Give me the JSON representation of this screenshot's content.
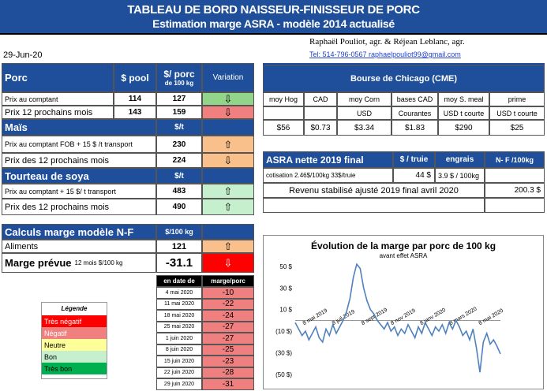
{
  "title": {
    "line1": "TABLEAU DE BORD NAISSEUR-FINISSEUR DE PORC",
    "line2": "Estimation marge ASRA - modèle 2014 actualisé"
  },
  "authors": "Raphaël Pouliot, agr.   &   Réjean Leblanc, agr.",
  "contact": "Tel:   514-796-0567   raphaelpouliot99@gmail.com",
  "date": "29-Jun-20",
  "porc": {
    "header": "Porc",
    "col_pool": "$ pool",
    "col_porc_l1": "$/ porc",
    "col_porc_l2": "de 100 kg",
    "col_var": "Variation",
    "rows": [
      {
        "label": "Prix au comptant",
        "pool": "114",
        "porc": "127",
        "arrow": "⇩"
      },
      {
        "label": "Prix 12 prochains mois",
        "pool": "143",
        "porc": "159",
        "arrow": "⇩"
      }
    ]
  },
  "mais": {
    "header": "Maïs",
    "unit": "$/t",
    "rows": [
      {
        "label": "Prix au comptant  FOB + 15 $ /t transport",
        "value": "230",
        "arrow": "⇧"
      },
      {
        "label": "Prix des 12 prochains mois",
        "value": "224",
        "arrow": "⇩"
      }
    ]
  },
  "soya": {
    "header": "Tourteau de soya",
    "unit": "$/t",
    "rows": [
      {
        "label": "Prix au comptant  + 15 $/ t  transport",
        "value": "483",
        "arrow": "⇧"
      },
      {
        "label": "Prix des 12 prochains mois",
        "value": "490",
        "arrow": "⇧"
      }
    ]
  },
  "calculs": {
    "header": "Calculs marge  modèle N-F",
    "unit": "$/100 kg",
    "aliments_label": "Aliments",
    "aliments_value": "121",
    "aliments_arrow": "⇧",
    "marge_label": "Marge prévue",
    "marge_sub": "12 mois  $/100 kg",
    "marge_value": "-31.1",
    "marge_arrow": "⇩"
  },
  "history": {
    "col_date": "en date de",
    "col_marge": "marge/porc",
    "rows": [
      {
        "date": "4 mai 2020",
        "value": "-10"
      },
      {
        "date": "11 mai 2020",
        "value": "-22"
      },
      {
        "date": "18 mai 2020",
        "value": "-24"
      },
      {
        "date": "25 mai 2020",
        "value": "-27"
      },
      {
        "date": "1 juin 2020",
        "value": "-27"
      },
      {
        "date": "8 juin 2020",
        "value": "-25"
      },
      {
        "date": "15 juin 2020",
        "value": "-23"
      },
      {
        "date": "22 juin 2020",
        "value": "-28"
      },
      {
        "date": "29 juin 2020",
        "value": "-31"
      }
    ]
  },
  "legend": {
    "title": "Légende",
    "items": [
      {
        "label": "Très négatif",
        "color": "#ff0000",
        "text_color": "#ffffff"
      },
      {
        "label": "Négatif",
        "color": "#f08080",
        "text_color": "#ffffff"
      },
      {
        "label": "Neutre",
        "color": "#ffff99",
        "text_color": "#000000"
      },
      {
        "label": "Bon",
        "color": "#c6efce",
        "text_color": "#000000"
      },
      {
        "label": "Très bon",
        "color": "#00b050",
        "text_color": "#000000"
      }
    ]
  },
  "cme": {
    "header": "Bourse de Chicago (CME)",
    "cols": [
      {
        "name": "moy Hog",
        "unit": "",
        "value": "$56"
      },
      {
        "name": "CAD",
        "unit": "",
        "value": "$0.73"
      },
      {
        "name": "moy Corn",
        "unit": "USD",
        "value": "$3.34"
      },
      {
        "name": "bases CAD",
        "unit": "Courantes",
        "value": "$1.83"
      },
      {
        "name": "moy S. meal",
        "unit": "USD t courte",
        "value": "$290"
      },
      {
        "name": "prime",
        "unit": "USD t courte",
        "value": "$25"
      }
    ]
  },
  "asra": {
    "header": "ASRA nette 2019 final",
    "col_truie": "$ / truie",
    "col_engrais": "engrais",
    "col_nf": "N- F /100kg",
    "cotisation_label": "cotisation 2.46$/100kg  33$/truie",
    "truie_value": "44  $",
    "engrais_value": "3.9  $ / 100kg",
    "revenu_label": "Revenu stabilisé ajusté 2019 final  avril 2020",
    "revenu_value": "200.3 $"
  },
  "chart_data": {
    "type": "line",
    "title": "Évolution de la marge par porc de 100 kg",
    "subtitle": "avant effet ASRA",
    "xlabel": "",
    "ylabel": "",
    "y_ticks": [
      "50 $",
      "30 $",
      "10 $",
      "(10 $)",
      "(30 $)",
      "(50 $)"
    ],
    "ylim": [
      -50,
      55
    ],
    "x_ticks": [
      "8 mai 2019",
      "8 juil 2019",
      "8 sept 2019",
      "8 nov 2019",
      "8 janv 2020",
      "8 mars 2020",
      "8 mai 2020"
    ],
    "x_ticks_rendered": [
      "8 mai 2019",
      "8 juil 2019",
      "8 sept 2019",
      "8 nov 2019",
      "8 janv 2020",
      "8 mars 2020",
      "8 mai 2020"
    ],
    "series": [
      {
        "color": "#4f81bd",
        "x": [
          0,
          1,
          2,
          3,
          4,
          5,
          6,
          7,
          8,
          9,
          10,
          11,
          12,
          13,
          14,
          15,
          16,
          17,
          18,
          19,
          20,
          21,
          22,
          23,
          24,
          25,
          26,
          27,
          28,
          29,
          30,
          31,
          32,
          33,
          34,
          35,
          36,
          37,
          38,
          39,
          40,
          41,
          42,
          43,
          44,
          45,
          46,
          47,
          48,
          49,
          50,
          51,
          52,
          53,
          54,
          55,
          56,
          57,
          58,
          59,
          60
        ],
        "values": [
          -2,
          -8,
          -14,
          -10,
          -18,
          -12,
          -6,
          -16,
          -20,
          -8,
          -14,
          -4,
          -12,
          -6,
          0,
          8,
          20,
          40,
          52,
          48,
          30,
          18,
          10,
          6,
          0,
          -4,
          -8,
          -2,
          -10,
          -6,
          -14,
          -8,
          -12,
          -4,
          -10,
          -16,
          -6,
          -12,
          -2,
          -8,
          -14,
          -6,
          -10,
          -4,
          -12,
          -2,
          -8,
          0,
          -6,
          -14,
          -10,
          -18,
          -8,
          -26,
          -48,
          -20,
          -12,
          -22,
          -18,
          -24,
          -31
        ]
      }
    ]
  }
}
